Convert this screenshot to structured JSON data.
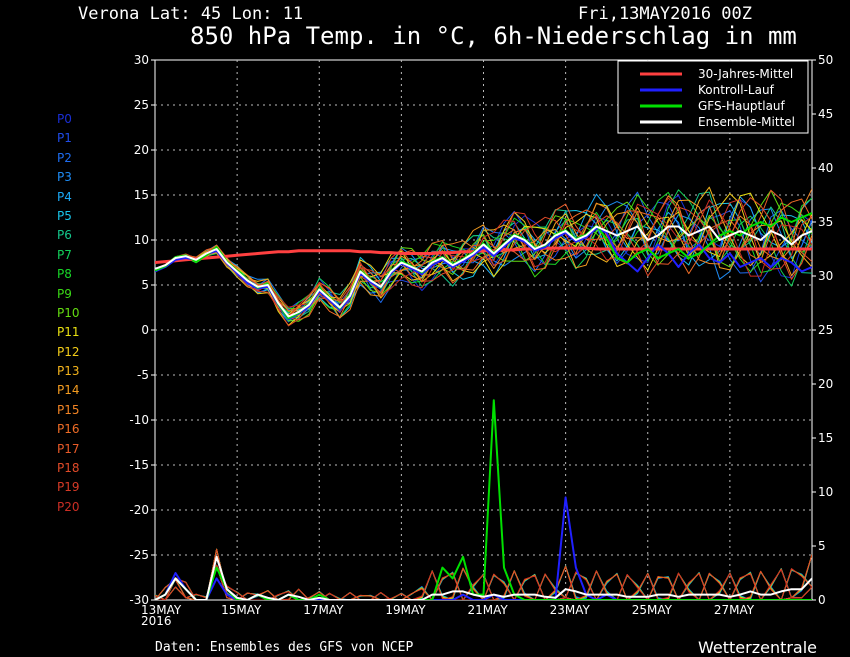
{
  "header": {
    "location": "Verona   Lat: 45 Lon: 11",
    "datetime": "Fri,13MAY2016 00Z",
    "title": "850 hPa Temp. in °C, 6h-Niederschlag in mm"
  },
  "footer": {
    "source": "Daten: Ensembles des GFS von NCEP",
    "brand": "Wetterzentrale"
  },
  "members": [
    {
      "label": "P0",
      "color": "#1a2fd6"
    },
    {
      "label": "P1",
      "color": "#1f4ce8"
    },
    {
      "label": "P2",
      "color": "#1e6cf0"
    },
    {
      "label": "P3",
      "color": "#1e8cf5"
    },
    {
      "label": "P4",
      "color": "#1aa8f5"
    },
    {
      "label": "P5",
      "color": "#18c4e8"
    },
    {
      "label": "P6",
      "color": "#14c88c"
    },
    {
      "label": "P7",
      "color": "#12d05a"
    },
    {
      "label": "P8",
      "color": "#18d628"
    },
    {
      "label": "P9",
      "color": "#3ad816"
    },
    {
      "label": "P10",
      "color": "#64dc10"
    },
    {
      "label": "P11",
      "color": "#e8e010"
    },
    {
      "label": "P12",
      "color": "#f2cc18"
    },
    {
      "label": "P13",
      "color": "#f4b41c"
    },
    {
      "label": "P14",
      "color": "#f49c20"
    },
    {
      "label": "P15",
      "color": "#f28424"
    },
    {
      "label": "P16",
      "color": "#ee6c26"
    },
    {
      "label": "P17",
      "color": "#e85a28"
    },
    {
      "label": "P18",
      "color": "#e04a28"
    },
    {
      "label": "P19",
      "color": "#d63a26"
    },
    {
      "label": "P20",
      "color": "#cc2e24"
    }
  ],
  "chart_data": {
    "type": "line",
    "x_ticks": [
      "13MAY\n2016",
      "15MAY",
      "17MAY",
      "19MAY",
      "21MAY",
      "23MAY",
      "25MAY",
      "27MAY"
    ],
    "x_tick_days": [
      0,
      2,
      4,
      6,
      8,
      10,
      12,
      14
    ],
    "x_range_days": [
      0,
      16
    ],
    "y_left": {
      "range": [
        -30,
        30
      ],
      "ticks": [
        30,
        25,
        20,
        15,
        10,
        5,
        0,
        -5,
        -10,
        -15,
        -20,
        -25,
        -30
      ]
    },
    "y_right": {
      "range": [
        0,
        50
      ],
      "ticks": [
        50,
        45,
        40,
        35,
        30,
        25,
        20,
        15,
        10,
        5,
        0
      ]
    },
    "grid": true,
    "legend": {
      "placement": "top-right",
      "entries": [
        {
          "name": "30-Jahres-Mittel",
          "color": "#ff4040"
        },
        {
          "name": "Kontroll-Lauf",
          "color": "#2020ff"
        },
        {
          "name": "GFS-Hauptlauf",
          "color": "#00e000"
        },
        {
          "name": "Ensemble-Mittel",
          "color": "#ffffff"
        }
      ]
    },
    "step_hours": 6,
    "temperature": {
      "climate_mean": [
        7.5,
        7.6,
        7.7,
        7.8,
        7.9,
        8.0,
        8.1,
        8.2,
        8.3,
        8.4,
        8.5,
        8.6,
        8.7,
        8.7,
        8.8,
        8.8,
        8.8,
        8.8,
        8.8,
        8.8,
        8.7,
        8.7,
        8.6,
        8.6,
        8.5,
        8.5,
        8.5,
        8.5,
        8.6,
        8.6,
        8.7,
        8.7,
        8.8,
        8.8,
        8.9,
        8.9,
        9.0,
        9.0,
        9.1,
        9.1,
        9.1,
        9.1,
        9.1,
        9.0,
        9.0,
        9.0,
        9.0,
        9.0,
        9.0,
        9.0,
        9.0,
        9.0,
        9.0,
        9.0,
        9.0,
        9.0,
        9.0,
        9.0,
        9.0,
        9.0,
        9.0,
        9.0,
        9.0,
        9.0,
        9.0
      ],
      "ensemble_mean": [
        6.8,
        7.2,
        8.0,
        8.2,
        7.8,
        8.5,
        9.0,
        7.5,
        6.5,
        5.5,
        4.8,
        5.0,
        3.0,
        1.5,
        2.0,
        2.8,
        4.5,
        3.5,
        2.5,
        3.8,
        6.5,
        5.5,
        4.8,
        6.5,
        7.5,
        7.0,
        6.5,
        7.5,
        8.0,
        7.2,
        7.8,
        8.5,
        9.5,
        8.5,
        9.5,
        10.5,
        10.0,
        9.0,
        9.5,
        10.5,
        11.0,
        10.0,
        10.5,
        11.5,
        11.0,
        10.5,
        11.0,
        11.5,
        10.0,
        10.5,
        11.5,
        11.5,
        10.5,
        11.0,
        11.5,
        10.0,
        10.5,
        11.0,
        10.5,
        10.0,
        11.0,
        10.5,
        9.5,
        10.5,
        11.0
      ],
      "control_run": [
        6.5,
        7.0,
        7.8,
        8.0,
        7.8,
        8.4,
        8.8,
        7.4,
        6.3,
        5.2,
        4.6,
        4.8,
        2.8,
        1.2,
        1.8,
        2.6,
        4.3,
        3.3,
        2.2,
        3.6,
        6.3,
        5.3,
        4.6,
        6.3,
        7.4,
        6.8,
        6.2,
        7.2,
        7.8,
        7.0,
        7.6,
        8.3,
        9.2,
        8.2,
        9.3,
        10.2,
        9.8,
        8.8,
        9.2,
        10.2,
        10.8,
        9.8,
        10.3,
        11.3,
        10.8,
        8.5,
        7.5,
        6.5,
        8.0,
        9.5,
        8.5,
        7.0,
        8.5,
        9.5,
        8.0,
        7.5,
        8.5,
        7.0,
        7.5,
        8.0,
        7.0,
        8.0,
        7.5,
        6.5,
        7.0
      ],
      "main_run": [
        6.6,
        7.1,
        8.1,
        8.3,
        7.6,
        8.3,
        9.2,
        7.6,
        6.6,
        5.6,
        4.7,
        5.1,
        2.9,
        1.3,
        1.9,
        2.9,
        4.6,
        3.6,
        2.4,
        3.9,
        6.6,
        5.6,
        4.7,
        6.6,
        7.6,
        7.1,
        6.4,
        7.6,
        8.1,
        7.3,
        7.9,
        8.6,
        9.6,
        8.6,
        9.6,
        10.6,
        10.1,
        9.1,
        9.4,
        10.6,
        11.1,
        10.1,
        10.6,
        11.6,
        10.1,
        8.0,
        7.5,
        8.5,
        9.0,
        8.0,
        8.5,
        9.0,
        8.0,
        8.5,
        9.5,
        10.5,
        11.0,
        10.5,
        11.5,
        12.0,
        11.5,
        12.5,
        12.0,
        12.5,
        13.0
      ]
    },
    "precipitation": {
      "ensemble_mean": [
        0,
        0.5,
        2.0,
        1.0,
        0,
        0,
        4.0,
        1.0,
        0.2,
        0,
        0.5,
        0.2,
        0,
        0.5,
        0.3,
        0,
        0.2,
        0,
        0,
        0,
        0,
        0,
        0,
        0,
        0,
        0,
        0,
        0.5,
        0.5,
        0.8,
        0.8,
        0.5,
        0.3,
        0.5,
        0.3,
        0.5,
        0.5,
        0.5,
        0.3,
        0.2,
        1.0,
        0.8,
        0.5,
        0.5,
        0.5,
        0.5,
        0.3,
        0.3,
        0.3,
        0.5,
        0.5,
        0.3,
        0.5,
        0.5,
        0.5,
        0.5,
        0.3,
        0.5,
        0.8,
        0.5,
        0.5,
        0.8,
        1.0,
        1.0,
        2.0
      ],
      "control_run": [
        0,
        0.5,
        2.5,
        1.0,
        0,
        0,
        2.0,
        0.5,
        0,
        0,
        0.5,
        0,
        0,
        0.5,
        0,
        0,
        0,
        0,
        0,
        0,
        0,
        0,
        0,
        0,
        0,
        0,
        0,
        0,
        0,
        0,
        0.5,
        0,
        0,
        0.5,
        0,
        0,
        0,
        0,
        0,
        0,
        9.5,
        3.0,
        0.5,
        0,
        0.5,
        0,
        0,
        0,
        0,
        0,
        0,
        0,
        0,
        0,
        0,
        0,
        0,
        0,
        0,
        0,
        0,
        0,
        0,
        0,
        0
      ],
      "main_run": [
        0,
        0.5,
        2.0,
        1.0,
        0,
        0,
        3.0,
        1.0,
        0,
        0,
        0.5,
        0,
        0,
        0.5,
        0,
        0,
        0.5,
        0,
        0,
        0,
        0,
        0,
        0,
        0,
        0,
        0,
        0,
        0,
        3.0,
        2.0,
        4.0,
        0.5,
        0.5,
        18.5,
        3.0,
        0.5,
        0,
        0,
        0,
        0,
        0,
        0,
        0,
        0,
        0,
        0,
        0,
        0,
        0,
        0,
        0,
        0,
        0,
        0,
        0,
        0,
        0,
        0,
        0,
        0,
        0,
        0,
        0,
        0,
        0
      ]
    }
  }
}
